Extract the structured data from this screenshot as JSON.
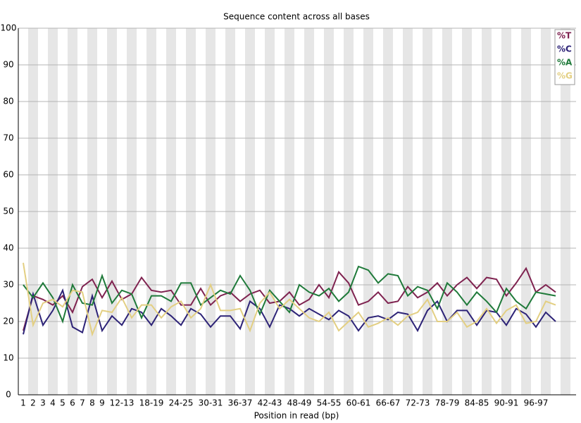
{
  "chart_data": {
    "type": "line",
    "title": "Sequence content across all bases",
    "x_label": "Position in read (bp)",
    "categories": [
      "1",
      "2",
      "3",
      "4",
      "5",
      "6",
      "7",
      "8",
      "9",
      null,
      "12-13",
      null,
      null,
      "18-19",
      null,
      null,
      "24-25",
      null,
      null,
      "30-31",
      null,
      null,
      "36-37",
      null,
      null,
      "42-43",
      null,
      null,
      "48-49",
      null,
      null,
      "54-55",
      null,
      null,
      "60-61",
      null,
      null,
      "66-67",
      null,
      null,
      "72-73",
      null,
      null,
      "78-79",
      null,
      null,
      "84-85",
      null,
      null,
      "90-91",
      null,
      null,
      "96-97",
      null,
      null
    ],
    "series": [
      {
        "name": "%T",
        "color": "#7f2350",
        "values": [
          17.5,
          27,
          26,
          24.5,
          27,
          22.5,
          29.5,
          31.5,
          26.5,
          31,
          26,
          27.5,
          32,
          28.5,
          28,
          28.5,
          24.5,
          24.5,
          29,
          24.5,
          27,
          28,
          25.5,
          27.5,
          28.5,
          25,
          25.5,
          28,
          24.5,
          26,
          30,
          26.5,
          33.5,
          30.5,
          24.5,
          25.5,
          28,
          25,
          25.5,
          29.5,
          26.5,
          28,
          30.5,
          27,
          30,
          32,
          29,
          32,
          31.5,
          27,
          30.5,
          34.5,
          28,
          30,
          28
        ]
      },
      {
        "name": "%C",
        "color": "#2d2377",
        "values": [
          16.5,
          27.5,
          19,
          23,
          28.5,
          18.5,
          17,
          27,
          17.5,
          21.5,
          19,
          23.5,
          22.5,
          19,
          23.5,
          21.5,
          19,
          23.5,
          22,
          18.5,
          21.5,
          21.5,
          18,
          25.5,
          23.5,
          18.5,
          24.5,
          23.5,
          21.5,
          23.5,
          22,
          20.5,
          23,
          21.5,
          17.5,
          21,
          21.5,
          20.5,
          22.5,
          22,
          17.5,
          23,
          25.5,
          20,
          23,
          23,
          19,
          23,
          22.5,
          19,
          23.5,
          22,
          18.5,
          22.5,
          20
        ]
      },
      {
        "name": "%A",
        "color": "#1f7a3a",
        "values": [
          30,
          26.5,
          30.5,
          26.5,
          20,
          30,
          25,
          24.5,
          32.5,
          25,
          28.5,
          27.5,
          21,
          27,
          27,
          25.5,
          30.5,
          30.5,
          24.5,
          26.5,
          28.5,
          27.5,
          32.5,
          28.5,
          22,
          28.5,
          25.5,
          22.5,
          30,
          28,
          27,
          29,
          25.5,
          28,
          35,
          34,
          30.5,
          33,
          32.5,
          27,
          29.5,
          28.5,
          23.5,
          30.5,
          28,
          24.5,
          28,
          25.5,
          22.5,
          29,
          25.5,
          23.5,
          28,
          27.5,
          27
        ]
      },
      {
        "name": "%G",
        "color": "#e3cf82",
        "values": [
          36,
          19,
          25,
          26,
          24,
          28.5,
          28,
          16.5,
          23,
          22.5,
          26.5,
          21,
          24.5,
          24.5,
          21,
          24,
          25.5,
          21,
          23.5,
          30,
          23,
          23,
          23.5,
          17.5,
          25,
          28,
          23.5,
          26,
          23.5,
          21,
          20,
          22.5,
          17.5,
          20,
          22.5,
          18.5,
          19.5,
          21,
          19,
          21.5,
          22.5,
          26,
          20,
          20,
          22.5,
          18.5,
          20,
          23.5,
          19.5,
          23,
          24.5,
          19.5,
          20,
          25.5,
          24.5
        ]
      }
    ],
    "ylim": [
      0,
      100
    ],
    "yticks": [
      0,
      10,
      20,
      30,
      40,
      50,
      60,
      70,
      80,
      90,
      100
    ],
    "grid": true,
    "legend": "top-right"
  }
}
